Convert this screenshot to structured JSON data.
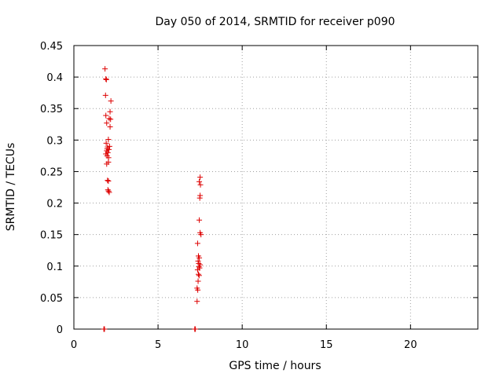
{
  "chart_data": {
    "type": "scatter",
    "title": "Day 050 of 2014, SRMTID for receiver p090",
    "xlabel": "GPS time / hours",
    "ylabel": "SRMTID / TECUs",
    "xlim": [
      0,
      24
    ],
    "ylim": [
      0,
      0.45
    ],
    "x_ticks": [
      0,
      5,
      10,
      15,
      20
    ],
    "x_tick_labels": [
      "0",
      "5",
      "10",
      "15",
      "20"
    ],
    "y_ticks": [
      0,
      0.05,
      0.1,
      0.15,
      0.2,
      0.25,
      0.3,
      0.35,
      0.4,
      0.45
    ],
    "y_tick_labels": [
      "0",
      "0.05",
      "0.1",
      "0.15",
      "0.2",
      "0.25",
      "0.3",
      "0.35",
      "0.4",
      "0.45"
    ],
    "grid": true,
    "marker": "+",
    "color": "#dd0000",
    "series": [
      {
        "name": "SRMTID",
        "points": [
          [
            1.85,
            0.413
          ],
          [
            1.9,
            0.397
          ],
          [
            1.93,
            0.396
          ],
          [
            1.88,
            0.371
          ],
          [
            2.2,
            0.362
          ],
          [
            2.15,
            0.345
          ],
          [
            1.9,
            0.339
          ],
          [
            2.1,
            0.334
          ],
          [
            2.18,
            0.333
          ],
          [
            1.95,
            0.327
          ],
          [
            2.15,
            0.321
          ],
          [
            2.05,
            0.301
          ],
          [
            1.92,
            0.295
          ],
          [
            2.12,
            0.29
          ],
          [
            2.0,
            0.289
          ],
          [
            1.98,
            0.286
          ],
          [
            2.08,
            0.285
          ],
          [
            1.95,
            0.283
          ],
          [
            2.02,
            0.28
          ],
          [
            1.9,
            0.278
          ],
          [
            1.97,
            0.275
          ],
          [
            2.06,
            0.272
          ],
          [
            2.05,
            0.265
          ],
          [
            1.95,
            0.262
          ],
          [
            2.0,
            0.236
          ],
          [
            2.05,
            0.235
          ],
          [
            2.02,
            0.221
          ],
          [
            2.06,
            0.219
          ],
          [
            2.1,
            0.217
          ],
          [
            1.78,
            0.0
          ],
          [
            1.82,
            0.0
          ],
          [
            7.5,
            0.241
          ],
          [
            7.45,
            0.234
          ],
          [
            7.52,
            0.229
          ],
          [
            7.5,
            0.212
          ],
          [
            7.48,
            0.208
          ],
          [
            7.45,
            0.173
          ],
          [
            7.5,
            0.153
          ],
          [
            7.55,
            0.15
          ],
          [
            7.35,
            0.136
          ],
          [
            7.4,
            0.116
          ],
          [
            7.45,
            0.113
          ],
          [
            7.38,
            0.108
          ],
          [
            7.42,
            0.104
          ],
          [
            7.5,
            0.102
          ],
          [
            7.43,
            0.099
          ],
          [
            7.47,
            0.097
          ],
          [
            7.35,
            0.094
          ],
          [
            7.4,
            0.087
          ],
          [
            7.44,
            0.085
          ],
          [
            7.38,
            0.076
          ],
          [
            7.32,
            0.065
          ],
          [
            7.36,
            0.062
          ],
          [
            7.32,
            0.044
          ],
          [
            7.18,
            0.0
          ],
          [
            7.22,
            0.0
          ]
        ]
      }
    ]
  }
}
